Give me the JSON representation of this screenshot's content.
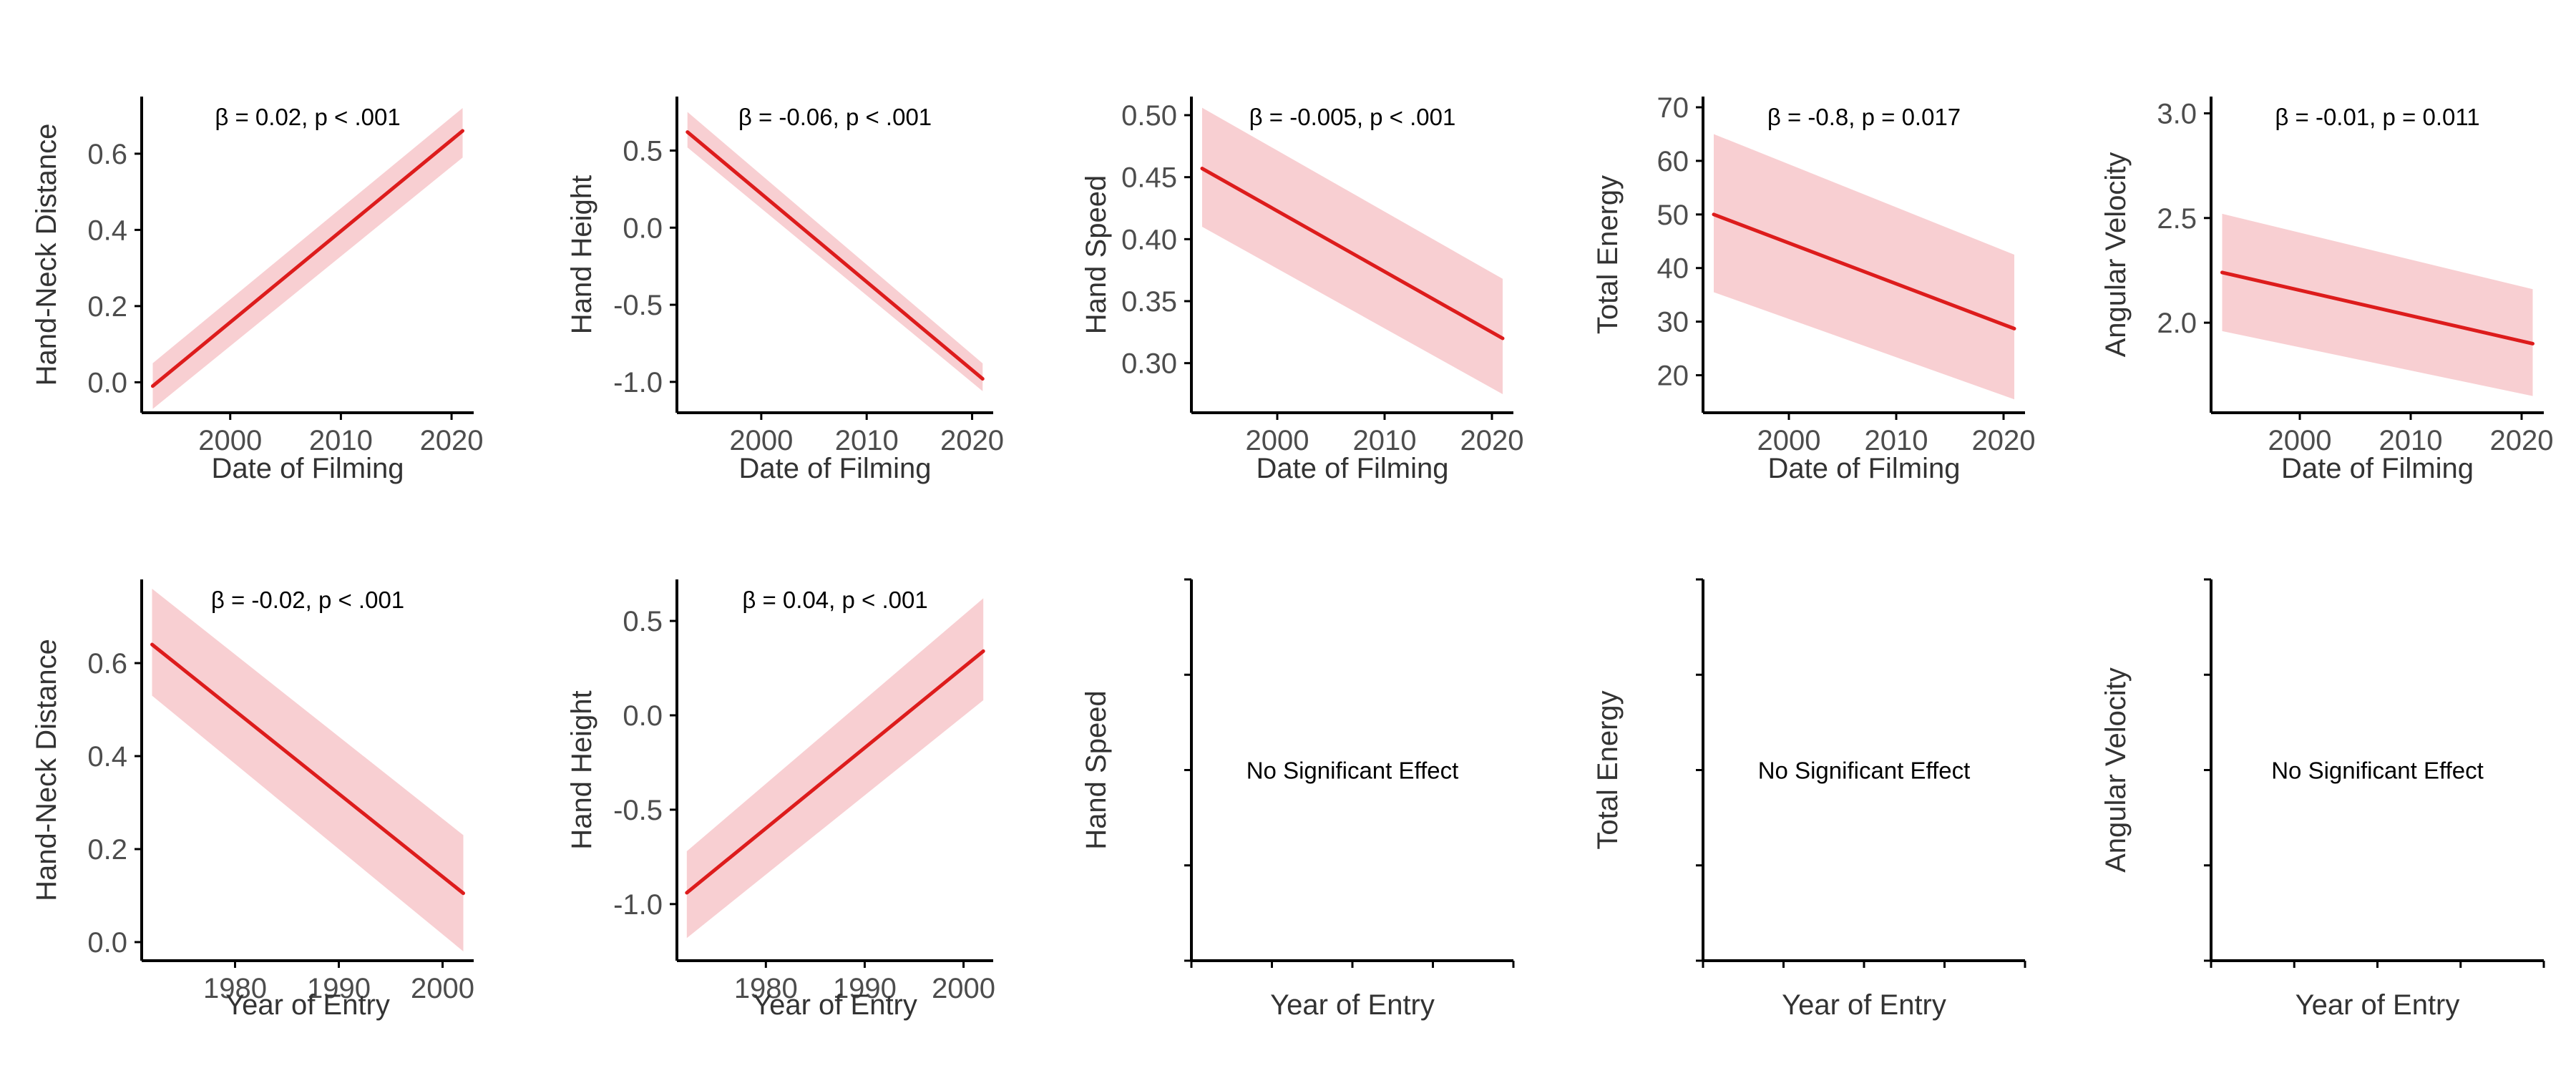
{
  "figure": {
    "colors": {
      "line": "#dd1c1c",
      "band": "#f8cfd2",
      "axis": "#000000",
      "tick_text": "#4d4d4d"
    }
  },
  "chart_data": [
    {
      "type": "line",
      "row": 0,
      "col": 0,
      "xlabel": "Date of Filming",
      "ylabel": "Hand-Neck Distance",
      "annotation": "β = 0.02, p < .001",
      "xlim": [
        1992,
        2022
      ],
      "ylim": [
        -0.08,
        0.75
      ],
      "xticks": [
        2000,
        2010,
        2020
      ],
      "xtick_labels": [
        "2000",
        "2010",
        "2020"
      ],
      "yticks": [
        0.0,
        0.2,
        0.4,
        0.6
      ],
      "ytick_labels": [
        "0.0",
        "0.2",
        "0.4",
        "0.6"
      ],
      "x": [
        1993,
        2021
      ],
      "y": [
        -0.01,
        0.66
      ],
      "ci_lower": [
        -0.07,
        0.59
      ],
      "ci_upper": [
        0.05,
        0.72
      ]
    },
    {
      "type": "line",
      "row": 0,
      "col": 1,
      "xlabel": "Date of Filming",
      "ylabel": "Hand Height",
      "annotation": "β = -0.06, p < .001",
      "xlim": [
        1992,
        2022
      ],
      "ylim": [
        -1.2,
        0.85
      ],
      "xticks": [
        2000,
        2010,
        2020
      ],
      "xtick_labels": [
        "2000",
        "2010",
        "2020"
      ],
      "yticks": [
        0.5,
        0.0,
        -0.5,
        -1.0
      ],
      "ytick_labels": [
        "0.5",
        "0.0",
        "-0.5",
        "-1.0"
      ],
      "x": [
        1993,
        2021
      ],
      "y": [
        0.62,
        -0.98
      ],
      "ci_lower": [
        0.52,
        -1.06
      ],
      "ci_upper": [
        0.75,
        -0.88
      ]
    },
    {
      "type": "line",
      "row": 0,
      "col": 2,
      "xlabel": "Date of Filming",
      "ylabel": "Hand Speed",
      "annotation": "β = -0.005, p < .001",
      "xlim": [
        1992,
        2022
      ],
      "ylim": [
        0.26,
        0.515
      ],
      "xticks": [
        2000,
        2010,
        2020
      ],
      "xtick_labels": [
        "2000",
        "2010",
        "2020"
      ],
      "yticks": [
        0.5,
        0.45,
        0.4,
        0.35,
        0.3
      ],
      "ytick_labels": [
        "0.50",
        "0.45",
        "0.40",
        "0.35",
        "0.30"
      ],
      "x": [
        1993,
        2021
      ],
      "y": [
        0.457,
        0.32
      ],
      "ci_lower": [
        0.41,
        0.275
      ],
      "ci_upper": [
        0.506,
        0.368
      ]
    },
    {
      "type": "line",
      "row": 0,
      "col": 3,
      "xlabel": "Date of Filming",
      "ylabel": "Total Energy",
      "annotation": "β = -0.8, p = 0.017",
      "xlim": [
        1992,
        2022
      ],
      "ylim": [
        13,
        72
      ],
      "xticks": [
        2000,
        2010,
        2020
      ],
      "xtick_labels": [
        "2000",
        "2010",
        "2020"
      ],
      "yticks": [
        70,
        60,
        50,
        40,
        30,
        20
      ],
      "ytick_labels": [
        "70",
        "60",
        "50",
        "40",
        "30",
        "20"
      ],
      "x": [
        1993,
        2021
      ],
      "y": [
        50,
        28.7
      ],
      "ci_lower": [
        35.5,
        15.5
      ],
      "ci_upper": [
        65,
        42.5
      ]
    },
    {
      "type": "line",
      "row": 0,
      "col": 4,
      "xlabel": "Date of Filming",
      "ylabel": "Angular Velocity",
      "annotation": "β = -0.01, p = 0.011",
      "xlim": [
        1992,
        2022
      ],
      "ylim": [
        1.57,
        3.08
      ],
      "xticks": [
        2000,
        2010,
        2020
      ],
      "xtick_labels": [
        "2000",
        "2010",
        "2020"
      ],
      "yticks": [
        3.0,
        2.5,
        2.0
      ],
      "ytick_labels": [
        "3.0",
        "2.5",
        "2.0"
      ],
      "x": [
        1993,
        2021
      ],
      "y": [
        2.24,
        1.9
      ],
      "ci_lower": [
        1.96,
        1.65
      ],
      "ci_upper": [
        2.52,
        2.16
      ]
    },
    {
      "type": "line",
      "row": 1,
      "col": 0,
      "xlabel": "Year of Entry",
      "ylabel": "Hand-Neck Distance",
      "annotation": "β = -0.02, p < .001",
      "xlim": [
        1971,
        2003
      ],
      "ylim": [
        -0.04,
        0.78
      ],
      "xticks": [
        1980,
        1990,
        2000
      ],
      "xtick_labels": [
        "1980",
        "1990",
        "2000"
      ],
      "yticks": [
        0.0,
        0.2,
        0.4,
        0.6
      ],
      "ytick_labels": [
        "0.0",
        "0.2",
        "0.4",
        "0.6"
      ],
      "x": [
        1972,
        2002
      ],
      "y": [
        0.64,
        0.105
      ],
      "ci_lower": [
        0.53,
        -0.02
      ],
      "ci_upper": [
        0.76,
        0.23
      ]
    },
    {
      "type": "line",
      "row": 1,
      "col": 1,
      "xlabel": "Year of Entry",
      "ylabel": "Hand Height",
      "annotation": "β = 0.04, p < .001",
      "xlim": [
        1971,
        2003
      ],
      "ylim": [
        -1.3,
        0.72
      ],
      "xticks": [
        1980,
        1990,
        2000
      ],
      "xtick_labels": [
        "1980",
        "1990",
        "2000"
      ],
      "yticks": [
        0.5,
        0.0,
        -0.5,
        -1.0
      ],
      "ytick_labels": [
        "0.5",
        "0.0",
        "-0.5",
        "-1.0"
      ],
      "x": [
        1972,
        2002
      ],
      "y": [
        -0.94,
        0.34
      ],
      "ci_lower": [
        -1.18,
        0.08
      ],
      "ci_upper": [
        -0.72,
        0.62
      ]
    },
    {
      "type": "empty",
      "row": 1,
      "col": 2,
      "xlabel": "Year of Entry",
      "ylabel": "Hand Speed",
      "annotation": "No Significant Effect"
    },
    {
      "type": "empty",
      "row": 1,
      "col": 3,
      "xlabel": "Year of Entry",
      "ylabel": "Total Energy",
      "annotation": "No Significant Effect"
    },
    {
      "type": "empty",
      "row": 1,
      "col": 4,
      "xlabel": "Year of Entry",
      "ylabel": "Angular Velocity",
      "annotation": "No Significant Effect"
    }
  ]
}
